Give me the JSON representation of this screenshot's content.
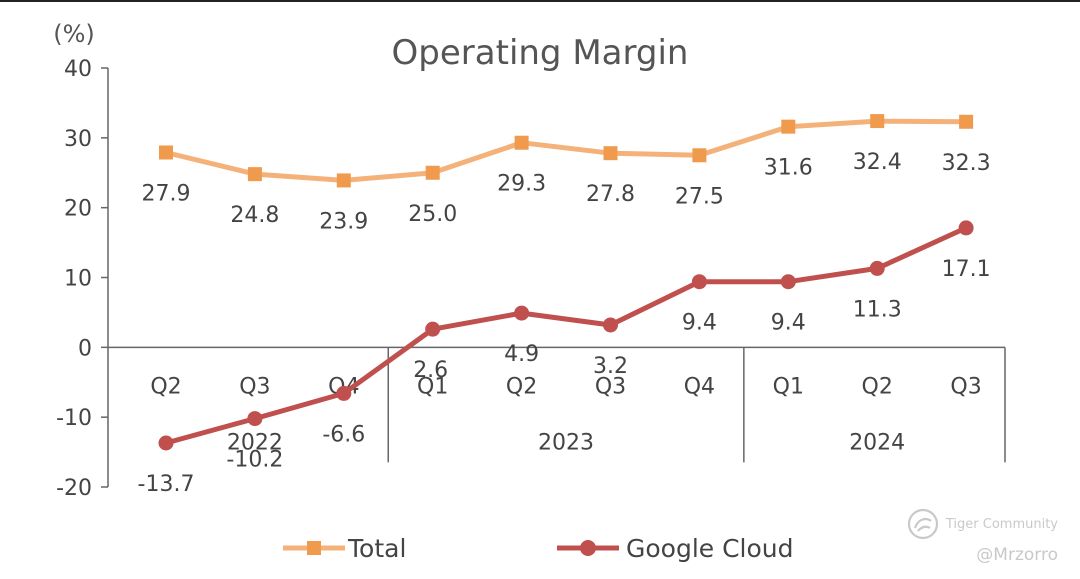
{
  "chart_data": {
    "type": "line",
    "title": "Operating Margin",
    "yunit": "(%)",
    "ylim": [
      -20,
      40
    ],
    "yticks": [
      40,
      30,
      20,
      10,
      0,
      -10,
      -20
    ],
    "categories": [
      "Q2",
      "Q3",
      "Q4",
      "Q1",
      "Q2",
      "Q3",
      "Q4",
      "Q1",
      "Q2",
      "Q3"
    ],
    "year_groups": [
      {
        "label": "2022",
        "count": 3
      },
      {
        "label": "2023",
        "count": 4
      },
      {
        "label": "2024",
        "count": 3
      }
    ],
    "series": [
      {
        "name": "Total",
        "color": "#f4b27a",
        "marker_color": "#f09a4d",
        "marker": "square",
        "values": [
          27.9,
          24.8,
          23.9,
          25.0,
          29.3,
          27.8,
          27.5,
          31.6,
          32.4,
          32.3
        ],
        "labels": [
          "27.9",
          "24.8",
          "23.9",
          "25.0",
          "29.3",
          "27.8",
          "27.5",
          "31.6",
          "32.4",
          "32.3"
        ]
      },
      {
        "name": "Google Cloud",
        "color": "#c0504d",
        "marker_color": "#c0504d",
        "marker": "circle",
        "values": [
          -13.7,
          -10.2,
          -6.6,
          2.6,
          4.9,
          3.2,
          9.4,
          9.4,
          11.3,
          17.1
        ],
        "labels": [
          "-13.7",
          "-10.2",
          "-6.6",
          "2.6",
          "4.9",
          "3.2",
          "9.4",
          "9.4",
          "11.3",
          "17.1"
        ]
      }
    ],
    "legend": "bottom-center",
    "grid": false
  },
  "watermark": {
    "brand": "Tiger Community",
    "handle": "@Mrzorro",
    "icon": "tiger-logo-icon"
  }
}
